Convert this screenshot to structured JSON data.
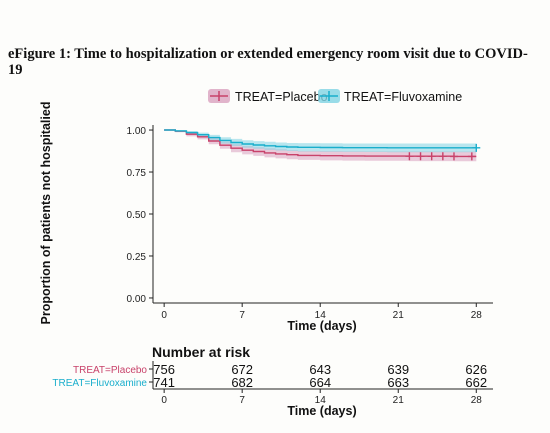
{
  "figure": {
    "title": "eFigure 1: Time to hospitalization or extended emergency room visit due to COVID-19"
  },
  "chart_data": {
    "type": "line",
    "subtype": "kaplan-meier",
    "title": "",
    "xlabel": "Time (days)",
    "ylabel": "Proportion of patients not hospitalied",
    "xlim": [
      -1,
      29.5
    ],
    "ylim": [
      -0.03,
      1.03
    ],
    "x_ticks": [
      0,
      7,
      14,
      21,
      28
    ],
    "y_ticks": [
      "0.00",
      "0.25",
      "0.50",
      "0.75",
      "1.00"
    ],
    "legend": {
      "placement": "top",
      "entries": [
        "TREAT=Placebo",
        "TREAT=Fluvoxamine"
      ]
    },
    "grid": false,
    "series": [
      {
        "name": "TREAT=Placebo",
        "color": "#c8426a",
        "band_color": "#d9a1bf",
        "x": [
          0,
          1,
          2,
          3,
          4,
          5,
          6,
          7,
          8,
          9,
          10,
          11,
          12,
          14,
          16,
          18,
          20,
          22,
          24,
          26,
          28
        ],
        "y": [
          1.0,
          0.993,
          0.975,
          0.96,
          0.935,
          0.91,
          0.892,
          0.88,
          0.872,
          0.864,
          0.858,
          0.853,
          0.849,
          0.847,
          0.846,
          0.845,
          0.845,
          0.844,
          0.844,
          0.843,
          0.843
        ],
        "ci_lower": [
          1.0,
          0.987,
          0.962,
          0.944,
          0.915,
          0.888,
          0.868,
          0.855,
          0.846,
          0.837,
          0.831,
          0.826,
          0.822,
          0.819,
          0.818,
          0.817,
          0.817,
          0.815,
          0.815,
          0.814,
          0.814
        ],
        "ci_upper": [
          1.0,
          0.999,
          0.988,
          0.976,
          0.955,
          0.932,
          0.916,
          0.905,
          0.898,
          0.891,
          0.885,
          0.88,
          0.876,
          0.875,
          0.874,
          0.873,
          0.873,
          0.873,
          0.873,
          0.872,
          0.872
        ],
        "censor_x": [
          22,
          23,
          24,
          25,
          26,
          27.6
        ]
      },
      {
        "name": "TREAT=Fluvoxamine",
        "color": "#19aecc",
        "band_color": "#7fd3e3",
        "x": [
          0,
          1,
          2,
          3,
          4,
          5,
          6,
          7,
          8,
          9,
          10,
          11,
          12,
          14,
          16,
          18,
          20,
          22,
          24,
          26,
          28
        ],
        "y": [
          1.0,
          0.995,
          0.985,
          0.972,
          0.955,
          0.938,
          0.926,
          0.917,
          0.911,
          0.906,
          0.902,
          0.899,
          0.897,
          0.896,
          0.895,
          0.895,
          0.894,
          0.894,
          0.894,
          0.894,
          0.894
        ],
        "ci_lower": [
          1.0,
          0.99,
          0.976,
          0.959,
          0.939,
          0.919,
          0.905,
          0.895,
          0.888,
          0.882,
          0.878,
          0.875,
          0.872,
          0.871,
          0.87,
          0.869,
          0.868,
          0.868,
          0.868,
          0.868,
          0.868
        ],
        "ci_upper": [
          1.0,
          1.0,
          0.994,
          0.985,
          0.971,
          0.957,
          0.947,
          0.939,
          0.934,
          0.93,
          0.926,
          0.923,
          0.922,
          0.921,
          0.92,
          0.92,
          0.92,
          0.92,
          0.92,
          0.92,
          0.92
        ],
        "censor_x": [
          28
        ]
      }
    ],
    "risk_table": {
      "title": "Number at risk",
      "xlabel": "Time (days)",
      "times": [
        0,
        7,
        14,
        21,
        28
      ],
      "rows": [
        {
          "label": "TREAT=Placebo",
          "color": "#c8426a",
          "values": [
            756,
            672,
            643,
            639,
            626
          ]
        },
        {
          "label": "TREAT=Fluvoxamine",
          "color": "#19aecc",
          "values": [
            741,
            682,
            664,
            663,
            662
          ]
        }
      ]
    }
  }
}
